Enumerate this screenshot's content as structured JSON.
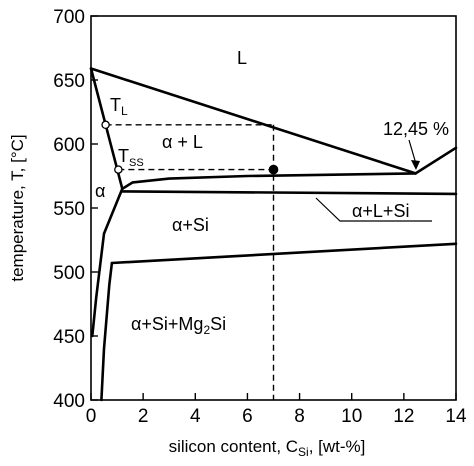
{
  "chart_data": {
    "type": "line",
    "xlabel": "silicon content, C",
    "xlabel_sub": "Si",
    "xlabel_units": ", [wt-%]",
    "ylabel": "temperature, T, [°C]",
    "xlim": [
      0,
      14
    ],
    "ylim": [
      400,
      700
    ],
    "x_ticks": [
      "0",
      "2",
      "4",
      "6",
      "8",
      "10",
      "12",
      "14"
    ],
    "y_ticks": [
      "400",
      "450",
      "500",
      "550",
      "600",
      "650",
      "700"
    ],
    "grid": false,
    "series": [
      {
        "x": [
          0,
          12.45
        ],
        "y": [
          659,
          577
        ]
      },
      {
        "x": [
          12.45,
          14
        ],
        "y": [
          577,
          597
        ]
      },
      {
        "x": [
          0,
          1.2
        ],
        "y": [
          659,
          565
        ]
      },
      {
        "x": [
          1.2,
          1.6,
          3,
          6,
          12.45
        ],
        "y": [
          565,
          570,
          573,
          575,
          577
        ]
      },
      {
        "x": [
          1.2,
          14
        ],
        "y": [
          563,
          561
        ]
      },
      {
        "x": [
          0.05,
          0.2,
          0.5,
          1.2
        ],
        "y": [
          450,
          480,
          530,
          565
        ]
      },
      {
        "x": [
          0.4,
          0.5,
          0.7,
          0.8
        ],
        "y": [
          400,
          440,
          490,
          507
        ]
      },
      {
        "x": [
          0.8,
          14
        ],
        "y": [
          507,
          522
        ]
      }
    ],
    "points": [
      {
        "x": 0.56,
        "y": 615,
        "style": "open"
      },
      {
        "x": 1.05,
        "y": 580,
        "style": "open"
      },
      {
        "x": 7,
        "y": 580,
        "style": "filled"
      }
    ],
    "guides": [
      {
        "x": [
          0.56,
          7
        ],
        "y": [
          615,
          615
        ]
      },
      {
        "x": [
          1.05,
          7
        ],
        "y": [
          580,
          580
        ]
      },
      {
        "x": [
          7,
          7
        ],
        "y": [
          615,
          400
        ]
      }
    ],
    "annotations": {
      "L": "L",
      "TL_main": "T",
      "TL_sub": "L",
      "TSS_main": "T",
      "TSS_sub": "SS",
      "alpha": "α",
      "alpha_L": "α + L",
      "alpha_Si": "α+Si",
      "alpha_L_Si": "α+L+Si",
      "eutectic": "12,45 %",
      "alpha_Si_Mg2Si_a": "α+Si+Mg",
      "alpha_Si_Mg2Si_sub": "2",
      "alpha_Si_Mg2Si_b": "Si"
    }
  }
}
